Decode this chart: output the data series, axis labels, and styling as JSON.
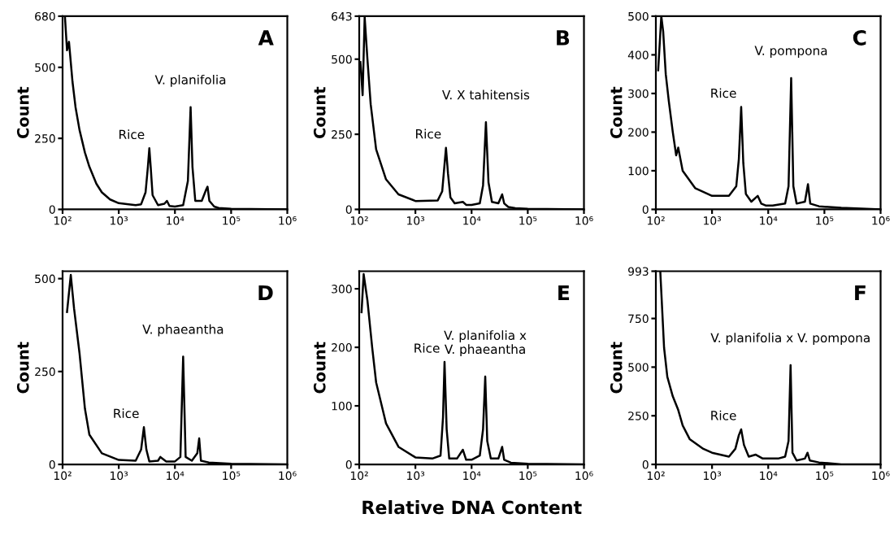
{
  "chart_data": [
    {
      "type": "line",
      "ylabel": "Count",
      "log": "x",
      "xlim": [
        100,
        1000000
      ],
      "xticks": [
        {
          "value": 100,
          "label": "10²"
        },
        {
          "value": 1000,
          "label": "10³"
        },
        {
          "value": 10000,
          "label": "10⁴"
        },
        {
          "value": 100000,
          "label": "10⁵"
        },
        {
          "value": 1000000,
          "label": "10⁶"
        }
      ],
      "ylim": [
        0,
        680
      ],
      "yticks": [
        0,
        250,
        500,
        680
      ],
      "grid": false,
      "series": [
        {
          "color": "#000000",
          "x": [
            110,
            120,
            130,
            150,
            170,
            200,
            250,
            300,
            400,
            500,
            700,
            1000,
            1500,
            2000,
            2500,
            3000,
            3300,
            3500,
            3700,
            4000,
            5000,
            6500,
            7200,
            8000,
            10000,
            14000,
            17000,
            19000,
            20500,
            23000,
            30000,
            36000,
            38000,
            41000,
            50000,
            60000,
            100000,
            1000000
          ],
          "values": [
            680,
            560,
            590,
            450,
            360,
            280,
            200,
            150,
            90,
            60,
            35,
            22,
            18,
            15,
            18,
            60,
            150,
            215,
            150,
            50,
            15,
            20,
            30,
            12,
            10,
            15,
            100,
            360,
            150,
            30,
            30,
            70,
            80,
            30,
            10,
            5,
            2,
            0
          ]
        }
      ],
      "annotations": [
        "A",
        {
          "text": "Rice",
          "x": 3500,
          "y": 215
        },
        {
          "text": "V. planifolia",
          "x": 19000,
          "y": 360
        }
      ]
    },
    {
      "type": "line",
      "ylabel": "Count",
      "log": "x",
      "xlim": [
        100,
        1000000
      ],
      "xticks": [
        {
          "value": 100,
          "label": "10²"
        },
        {
          "value": 1000,
          "label": "10³"
        },
        {
          "value": 10000,
          "label": "10⁴"
        },
        {
          "value": 100000,
          "label": "10⁵"
        },
        {
          "value": 1000000,
          "label": "10⁶"
        }
      ],
      "ylim": [
        0,
        643
      ],
      "yticks": [
        0,
        250,
        500,
        643
      ],
      "grid": false,
      "series": [
        {
          "color": "#000000",
          "x": [
            105,
            115,
            125,
            140,
            160,
            200,
            300,
            500,
            1000,
            2500,
            3000,
            3300,
            3500,
            3800,
            4200,
            5000,
            7000,
            8000,
            10000,
            14000,
            16000,
            18000,
            20000,
            23000,
            30000,
            35000,
            38000,
            45000,
            60000,
            100000,
            1000000
          ],
          "values": [
            490,
            380,
            640,
            500,
            350,
            200,
            100,
            50,
            28,
            30,
            60,
            150,
            205,
            120,
            40,
            20,
            25,
            15,
            15,
            20,
            80,
            290,
            90,
            25,
            20,
            50,
            20,
            8,
            4,
            2,
            0
          ]
        }
      ],
      "annotations": [
        "B",
        {
          "text": "Rice",
          "x": 3500,
          "y": 205
        },
        {
          "text": "V. X tahitensis",
          "x": 18000,
          "y": 290
        }
      ]
    },
    {
      "type": "line",
      "ylabel": "Count",
      "log": "x",
      "xlim": [
        100,
        1000000
      ],
      "xticks": [
        {
          "value": 100,
          "label": "10²"
        },
        {
          "value": 1000,
          "label": "10³"
        },
        {
          "value": 10000,
          "label": "10⁴"
        },
        {
          "value": 100000,
          "label": "10⁵"
        },
        {
          "value": 1000000,
          "label": "10⁶"
        }
      ],
      "ylim": [
        0,
        500
      ],
      "yticks": [
        0,
        100,
        200,
        300,
        400,
        500
      ],
      "grid": false,
      "series": [
        {
          "color": "#000000",
          "x": [
            110,
            125,
            135,
            150,
            170,
            200,
            230,
            250,
            300,
            500,
            1000,
            2000,
            2700,
            3000,
            3300,
            3600,
            4000,
            5000,
            6500,
            7500,
            9000,
            12000,
            20000,
            23000,
            25600,
            28000,
            32000,
            45000,
            51000,
            56000,
            80000,
            200000,
            1000000
          ],
          "values": [
            360,
            500,
            460,
            350,
            280,
            200,
            140,
            160,
            100,
            55,
            35,
            35,
            60,
            130,
            265,
            120,
            40,
            20,
            35,
            15,
            10,
            10,
            15,
            60,
            340,
            60,
            15,
            20,
            65,
            15,
            8,
            4,
            0
          ]
        }
      ],
      "annotations": [
        "C",
        {
          "text": "Rice",
          "x": 3300,
          "y": 265
        },
        {
          "text": "V. pompona",
          "x": 25600,
          "y": 340
        }
      ]
    },
    {
      "type": "line",
      "ylabel": "Count",
      "log": "x",
      "xlim": [
        100,
        1000000
      ],
      "xticks": [
        {
          "value": 100,
          "label": "10²"
        },
        {
          "value": 1000,
          "label": "10³"
        },
        {
          "value": 10000,
          "label": "10⁴"
        },
        {
          "value": 100000,
          "label": "10⁵"
        },
        {
          "value": 1000000,
          "label": "10⁶"
        }
      ],
      "ylim": [
        0,
        520
      ],
      "yticks": [
        0,
        250,
        500
      ],
      "grid": false,
      "series": [
        {
          "color": "#000000",
          "x": [
            120,
            140,
            160,
            200,
            250,
            300,
            500,
            1000,
            2000,
            2500,
            2800,
            3100,
            3500,
            5000,
            5500,
            7000,
            10000,
            12500,
            14000,
            15500,
            20000,
            25000,
            27000,
            29000,
            40000,
            100000,
            1000000
          ],
          "values": [
            410,
            510,
            420,
            300,
            150,
            80,
            30,
            12,
            10,
            40,
            100,
            40,
            8,
            10,
            20,
            8,
            8,
            20,
            290,
            20,
            10,
            30,
            70,
            10,
            5,
            2,
            0
          ]
        }
      ],
      "annotations": [
        "D",
        {
          "text": "Rice",
          "x": 2800,
          "y": 100
        },
        {
          "text": "V. phaeantha",
          "x": 14000,
          "y": 290
        }
      ]
    },
    {
      "type": "line",
      "ylabel": "Count",
      "xlabel": "Relative DNA Content",
      "log": "x",
      "xlim": [
        100,
        1000000
      ],
      "xticks": [
        {
          "value": 100,
          "label": "10²"
        },
        {
          "value": 1000,
          "label": "10³"
        },
        {
          "value": 10000,
          "label": "10⁴"
        },
        {
          "value": 100000,
          "label": "10⁵"
        },
        {
          "value": 1000000,
          "label": "10⁶"
        }
      ],
      "ylim": [
        0,
        330
      ],
      "yticks": [
        0,
        100,
        200,
        300
      ],
      "grid": false,
      "series": [
        {
          "color": "#000000",
          "x": [
            110,
            120,
            140,
            170,
            200,
            300,
            500,
            1000,
            2000,
            2800,
            3100,
            3300,
            3600,
            4000,
            5500,
            7000,
            8000,
            10000,
            14000,
            16000,
            17500,
            19000,
            22000,
            30000,
            35000,
            38000,
            50000,
            100000,
            1000000
          ],
          "values": [
            260,
            325,
            280,
            200,
            140,
            70,
            30,
            12,
            10,
            15,
            80,
            175,
            60,
            10,
            10,
            25,
            8,
            8,
            15,
            60,
            150,
            40,
            10,
            10,
            30,
            8,
            3,
            1,
            0
          ]
        }
      ],
      "annotations": [
        "E",
        {
          "text": "Rice",
          "x": 3300,
          "y": 175
        },
        {
          "text": "V. planifolia x\nV. phaeantha",
          "x": 17500,
          "y": 150
        }
      ]
    },
    {
      "type": "line",
      "ylabel": "Count",
      "log": "x",
      "xlim": [
        100,
        1000000
      ],
      "xticks": [
        {
          "value": 100,
          "label": "10²"
        },
        {
          "value": 1000,
          "label": "10³"
        },
        {
          "value": 10000,
          "label": "10⁴"
        },
        {
          "value": 100000,
          "label": "10⁵"
        },
        {
          "value": 1000000,
          "label": "10⁶"
        }
      ],
      "ylim": [
        0,
        993
      ],
      "yticks": [
        0,
        250,
        500,
        750,
        993
      ],
      "grid": false,
      "series": [
        {
          "color": "#000000",
          "x": [
            120,
            140,
            160,
            200,
            250,
            300,
            400,
            700,
            1000,
            2000,
            2600,
            3000,
            3300,
            3700,
            4500,
            6000,
            8000,
            10000,
            15000,
            20000,
            23000,
            25000,
            27000,
            32000,
            45000,
            50000,
            55000,
            80000,
            200000,
            1000000
          ],
          "values": [
            990,
            600,
            450,
            350,
            280,
            200,
            130,
            80,
            60,
            40,
            80,
            150,
            180,
            100,
            40,
            50,
            30,
            30,
            30,
            40,
            120,
            510,
            60,
            20,
            30,
            60,
            20,
            10,
            0,
            0
          ]
        }
      ],
      "annotations": [
        "F",
        {
          "text": "Rice",
          "x": 3300,
          "y": 180
        },
        {
          "text": "V. planifolia x V. pompona",
          "x": 25000,
          "y": 510
        }
      ]
    }
  ]
}
